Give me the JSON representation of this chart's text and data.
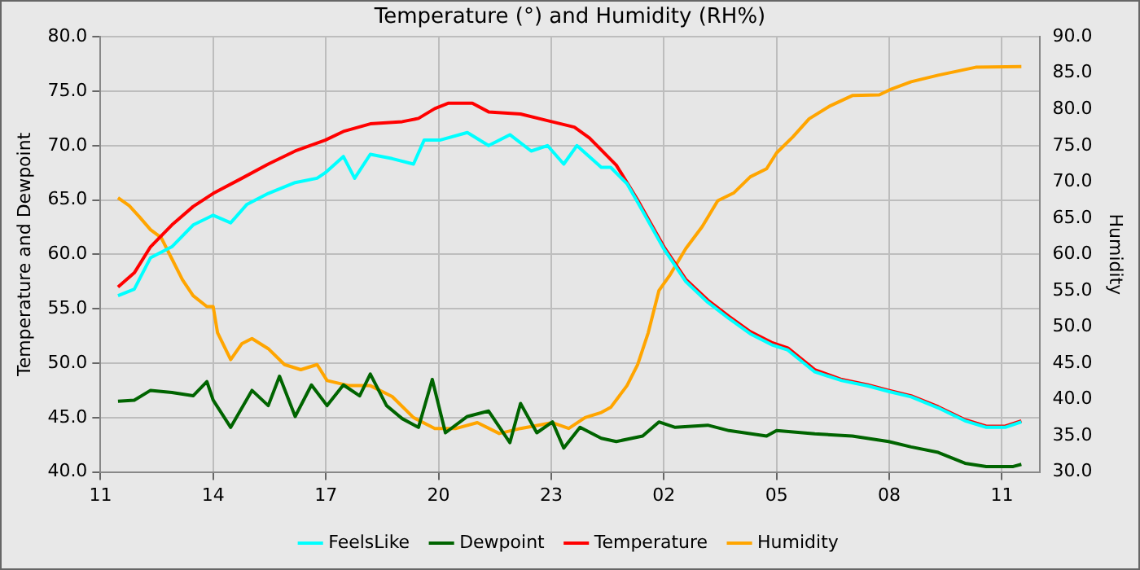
{
  "chart_data": {
    "type": "line",
    "title": "Temperature (°) and Humidity (RH%)",
    "ylabel": "Temperature and Dewpoint",
    "y2label": "Humidity",
    "xlim": [
      "--01-01T11:00",
      "--01-02T12:00"
    ],
    "xticks": [
      {
        "value": "--01-01T11:00",
        "label": "11"
      },
      {
        "value": "--01-01T14:00",
        "label": "14"
      },
      {
        "value": "--01-01T17:00",
        "label": "17"
      },
      {
        "value": "--01-01T20:00",
        "label": "20"
      },
      {
        "value": "--01-01T23:00",
        "label": "23"
      },
      {
        "value": "--01-02T02:00",
        "label": "02"
      },
      {
        "value": "--01-02T05:00",
        "label": "05"
      },
      {
        "value": "--01-02T08:00",
        "label": "08"
      },
      {
        "value": "--01-02T11:00",
        "label": "11"
      }
    ],
    "ylim": [
      40,
      80
    ],
    "yticks": [
      {
        "value": 40,
        "label": "40.0"
      },
      {
        "value": 45,
        "label": "45.0"
      },
      {
        "value": 50,
        "label": "50.0"
      },
      {
        "value": 55,
        "label": "55.0"
      },
      {
        "value": 60,
        "label": "60.0"
      },
      {
        "value": 65,
        "label": "65.0"
      },
      {
        "value": 70,
        "label": "70.0"
      },
      {
        "value": 75,
        "label": "75.0"
      },
      {
        "value": 80,
        "label": "80.0"
      }
    ],
    "y2lim": [
      30,
      90
    ],
    "y2ticks": [
      {
        "value": 30,
        "label": "30.0"
      },
      {
        "value": 35,
        "label": "35.0"
      },
      {
        "value": 40,
        "label": "40.0"
      },
      {
        "value": 45,
        "label": "45.0"
      },
      {
        "value": 50,
        "label": "50.0"
      },
      {
        "value": 55,
        "label": "55.0"
      },
      {
        "value": 60,
        "label": "60.0"
      },
      {
        "value": 65,
        "label": "65.0"
      },
      {
        "value": 70,
        "label": "70.0"
      },
      {
        "value": 75,
        "label": "75.0"
      },
      {
        "value": 80,
        "label": "80.0"
      },
      {
        "value": 85,
        "label": "85.0"
      },
      {
        "value": 90,
        "label": "90.0"
      }
    ],
    "grid": true,
    "legend": "bottom",
    "marker": "none",
    "line_style": "solid",
    "series": [
      {
        "name": "FeelsLike",
        "color": "#00ffff",
        "x": [
          "--01-01T11:28",
          "--01-01T11:54",
          "--01-01T12:20",
          "--01-01T12:54",
          "--01-01T13:28",
          "--01-01T14:00",
          "--01-01T14:28",
          "--01-01T14:54",
          "--01-01T15:28",
          "--01-01T16:11",
          "--01-01T16:46",
          "--01-01T16:59",
          "--01-01T17:28",
          "--01-01T17:46",
          "--01-01T18:11",
          "--01-01T18:46",
          "--01-01T19:20",
          "--01-01T19:37",
          "--01-01T20:02",
          "--01-01T20:46",
          "--01-01T21:20",
          "--01-01T21:54",
          "--01-01T22:28",
          "--01-01T22:54",
          "--01-01T23:20",
          "--01-01T23:41",
          "--01-02T00:20",
          "--01-02T00:35",
          "--01-02T01:01",
          "--01-02T01:18",
          "--01-02T02:00",
          "--01-02T02:35",
          "--01-02T03:10",
          "--01-02T03:44",
          "--01-02T04:18",
          "--01-02T04:52",
          "--01-02T05:18",
          "--01-02T06:01",
          "--01-02T06:44",
          "--01-02T07:26",
          "--01-02T07:59",
          "--01-02T08:35",
          "--01-02T09:18",
          "--01-02T10:01",
          "--01-02T10:35",
          "--01-02T11:05",
          "--01-02T11:31"
        ],
        "values": [
          56.2,
          56.8,
          59.7,
          60.7,
          62.7,
          63.6,
          62.9,
          64.6,
          65.6,
          66.6,
          67,
          67.5,
          69,
          67,
          69.2,
          68.8,
          68.3,
          70.5,
          70.5,
          71.2,
          70,
          71,
          69.5,
          70,
          68.3,
          70,
          68,
          68,
          66.5,
          64.8,
          60.5,
          57.5,
          55.6,
          54.1,
          52.7,
          51.7,
          51.2,
          49.2,
          48.4,
          47.9,
          47.4,
          46.9,
          45.9,
          44.7,
          44.1,
          44.1,
          44.6
        ]
      },
      {
        "name": "Dewpoint",
        "color": "#006400",
        "x": [
          "--01-01T11:28",
          "--01-01T11:54",
          "--01-01T12:20",
          "--01-01T12:54",
          "--01-01T13:28",
          "--01-01T13:50",
          "--01-01T14:00",
          "--01-01T14:28",
          "--01-01T15:02",
          "--01-01T15:28",
          "--01-01T15:46",
          "--01-01T16:11",
          "--01-01T16:37",
          "--01-01T17:02",
          "--01-01T17:28",
          "--01-01T17:54",
          "--01-01T18:11",
          "--01-01T18:37",
          "--01-01T19:02",
          "--01-01T19:28",
          "--01-01T19:50",
          "--01-01T20:11",
          "--01-01T20:46",
          "--01-01T21:20",
          "--01-01T21:54",
          "--01-01T22:11",
          "--01-01T22:37",
          "--01-01T23:02",
          "--01-01T23:20",
          "--01-01T23:46",
          "--01-02T00:20",
          "--01-02T00:44",
          "--01-02T01:26",
          "--01-02T01:52",
          "--01-02T02:18",
          "--01-02T03:10",
          "--01-02T03:44",
          "--01-02T04:44",
          "--01-02T05:00",
          "--01-02T06:01",
          "--01-02T07:01",
          "--01-02T07:59",
          "--01-02T08:35",
          "--01-02T09:18",
          "--01-02T10:01",
          "--01-02T10:35",
          "--01-02T11:18",
          "--01-02T11:31"
        ],
        "values": [
          46.5,
          46.6,
          47.5,
          47.3,
          47,
          48.3,
          46.6,
          44.1,
          47.5,
          46.1,
          48.8,
          45.1,
          48,
          46.1,
          48,
          47,
          49,
          46.1,
          44.9,
          44.1,
          48.5,
          43.6,
          45.1,
          45.6,
          42.7,
          46.3,
          43.6,
          44.6,
          42.2,
          44.1,
          43.1,
          42.8,
          43.3,
          44.6,
          44.1,
          44.3,
          43.8,
          43.3,
          43.8,
          43.5,
          43.3,
          42.8,
          42.3,
          41.8,
          40.8,
          40.5,
          40.5,
          40.7
        ]
      },
      {
        "name": "Temperature",
        "color": "#ff0000",
        "x": [
          "--01-01T11:28",
          "--01-01T11:54",
          "--01-01T12:20",
          "--01-01T12:54",
          "--01-01T13:28",
          "--01-01T14:00",
          "--01-01T14:46",
          "--01-01T15:28",
          "--01-01T16:11",
          "--01-01T16:59",
          "--01-01T17:28",
          "--01-01T18:11",
          "--01-01T19:02",
          "--01-01T19:28",
          "--01-01T19:54",
          "--01-01T20:16",
          "--01-01T20:54",
          "--01-01T21:20",
          "--01-01T22:11",
          "--01-01T22:54",
          "--01-01T23:37",
          "--01-02T00:01",
          "--01-02T00:44",
          "--01-02T01:18",
          "--01-02T02:00",
          "--01-02T02:35",
          "--01-02T03:10",
          "--01-02T03:44",
          "--01-02T04:18",
          "--01-02T04:52",
          "--01-02T05:18",
          "--01-02T06:01",
          "--01-02T06:44",
          "--01-02T07:26",
          "--01-02T07:59",
          "--01-02T08:35",
          "--01-02T09:18",
          "--01-02T10:01",
          "--01-02T10:35",
          "--01-02T11:05",
          "--01-02T11:31"
        ],
        "values": [
          57,
          58.3,
          60.7,
          62.7,
          64.4,
          65.6,
          67,
          68.3,
          69.5,
          70.5,
          71.3,
          72,
          72.2,
          72.5,
          73.4,
          73.9,
          73.9,
          73.1,
          72.9,
          72.3,
          71.7,
          70.7,
          68.2,
          65,
          60.7,
          57.7,
          55.8,
          54.3,
          52.9,
          51.9,
          51.4,
          49.4,
          48.5,
          48,
          47.5,
          47,
          46,
          44.8,
          44.2,
          44.2,
          44.7
        ]
      },
      {
        "name": "Humidity",
        "color": "#ffa500",
        "axis": "y2",
        "x": [
          "--01-01T11:28",
          "--01-01T11:46",
          "--01-01T12:02",
          "--01-01T12:20",
          "--01-01T12:37",
          "--01-01T12:54",
          "--01-01T13:11",
          "--01-01T13:28",
          "--01-01T13:50",
          "--01-01T14:00",
          "--01-01T14:07",
          "--01-01T14:28",
          "--01-01T14:46",
          "--01-01T15:02",
          "--01-01T15:28",
          "--01-01T15:54",
          "--01-01T16:20",
          "--01-01T16:46",
          "--01-01T17:02",
          "--01-01T17:37",
          "--01-01T18:11",
          "--01-01T18:46",
          "--01-01T19:20",
          "--01-01T19:54",
          "--01-01T20:28",
          "--01-01T21:02",
          "--01-01T21:37",
          "--01-01T22:11",
          "--01-01T23:02",
          "--01-01T23:28",
          "--01-01T23:54",
          "--01-02T00:20",
          "--01-02T00:35",
          "--01-02T01:01",
          "--01-02T01:18",
          "--01-02T01:35",
          "--01-02T01:52",
          "--01-02T02:10",
          "--01-02T02:35",
          "--01-02T03:01",
          "--01-02T03:26",
          "--01-02T03:52",
          "--01-02T04:18",
          "--01-02T04:44",
          "--01-02T05:00",
          "--01-02T05:26",
          "--01-02T05:52",
          "--01-02T06:26",
          "--01-02T07:01",
          "--01-02T07:44",
          "--01-02T08:01",
          "--01-02T08:35",
          "--01-02T09:18",
          "--01-02T10:18",
          "--01-02T11:31"
        ],
        "values": [
          67.8,
          66.7,
          65.2,
          63.4,
          62.3,
          59.4,
          56.5,
          54.3,
          52.8,
          52.8,
          49.2,
          45.5,
          47.7,
          48.4,
          47,
          44.8,
          44.1,
          44.8,
          42.6,
          41.9,
          41.9,
          40.4,
          37.5,
          36,
          36,
          36.8,
          35.3,
          36,
          36.8,
          36,
          37.5,
          38.2,
          38.9,
          41.9,
          44.8,
          49.2,
          55,
          57.2,
          60.8,
          63.8,
          67.4,
          68.5,
          70.7,
          71.8,
          74,
          76.2,
          78.7,
          80.5,
          81.9,
          82,
          82.7,
          83.8,
          84.7,
          85.8,
          85.9
        ]
      }
    ]
  }
}
